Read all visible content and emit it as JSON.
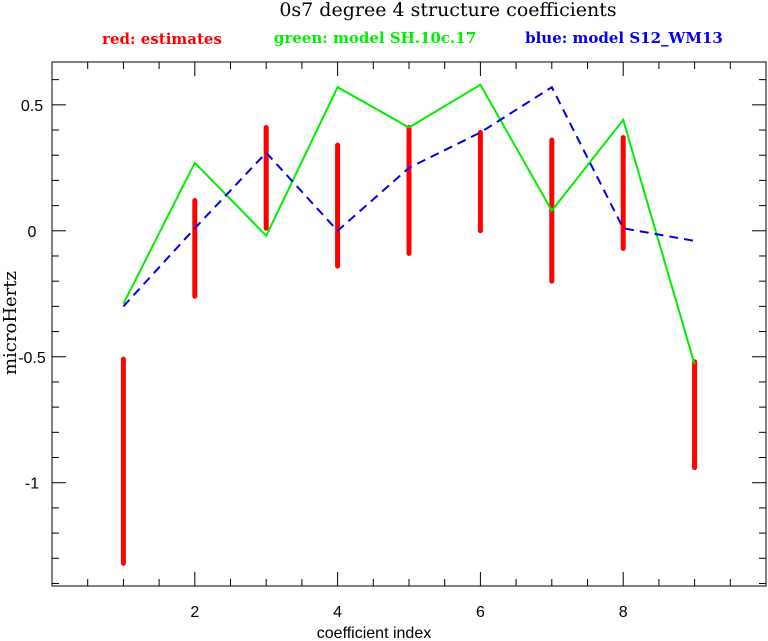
{
  "chart_data": {
    "type": "line",
    "title": "0s7 degree 4 structure coefficients",
    "legend": [
      {
        "label": "red: estimates",
        "color": "#ff0000"
      },
      {
        "label": "green: model SH.10c.17",
        "color": "#00ee00"
      },
      {
        "label": "blue: model S12_WM13",
        "color": "#0000ee"
      }
    ],
    "xlabel": "coefficient index",
    "ylabel": "microHertz",
    "xlim": [
      0,
      10
    ],
    "ylim": [
      -1.41,
      0.67
    ],
    "xticks": [
      2,
      4,
      6,
      8
    ],
    "xtick_labels": [
      "2",
      "4",
      "6",
      "8"
    ],
    "yticks": [
      0.5,
      0,
      -0.5,
      -1
    ],
    "ytick_labels": [
      "0.5",
      "0",
      "-0.5",
      "-1"
    ],
    "x_minor_step": 0.5,
    "y_minor_step": 0.1,
    "grid": false,
    "series": [
      {
        "name": "red: estimates",
        "style": "errorbar",
        "color": "#ff0000",
        "x": [
          1,
          2,
          3,
          4,
          5,
          6,
          7,
          8,
          9
        ],
        "low": [
          -1.32,
          -0.26,
          0.01,
          -0.14,
          -0.09,
          0.0,
          -0.2,
          -0.07,
          -0.94
        ],
        "high": [
          -0.51,
          0.12,
          0.41,
          0.34,
          0.41,
          0.39,
          0.36,
          0.37,
          -0.52
        ]
      },
      {
        "name": "green: model SH.10c.17",
        "style": "solid",
        "color": "#00ee00",
        "x": [
          1,
          2,
          3,
          4,
          5,
          6,
          7,
          8,
          9
        ],
        "y": [
          -0.29,
          0.27,
          -0.02,
          0.57,
          0.41,
          0.58,
          0.08,
          0.44,
          -0.53
        ]
      },
      {
        "name": "blue: model S12_WM13",
        "style": "dashed",
        "color": "#0000ee",
        "x": [
          1,
          2,
          3,
          4,
          5,
          6,
          7,
          8,
          9
        ],
        "y": [
          -0.3,
          0.01,
          0.31,
          0.0,
          0.25,
          0.39,
          0.57,
          0.01,
          -0.04
        ]
      }
    ]
  }
}
